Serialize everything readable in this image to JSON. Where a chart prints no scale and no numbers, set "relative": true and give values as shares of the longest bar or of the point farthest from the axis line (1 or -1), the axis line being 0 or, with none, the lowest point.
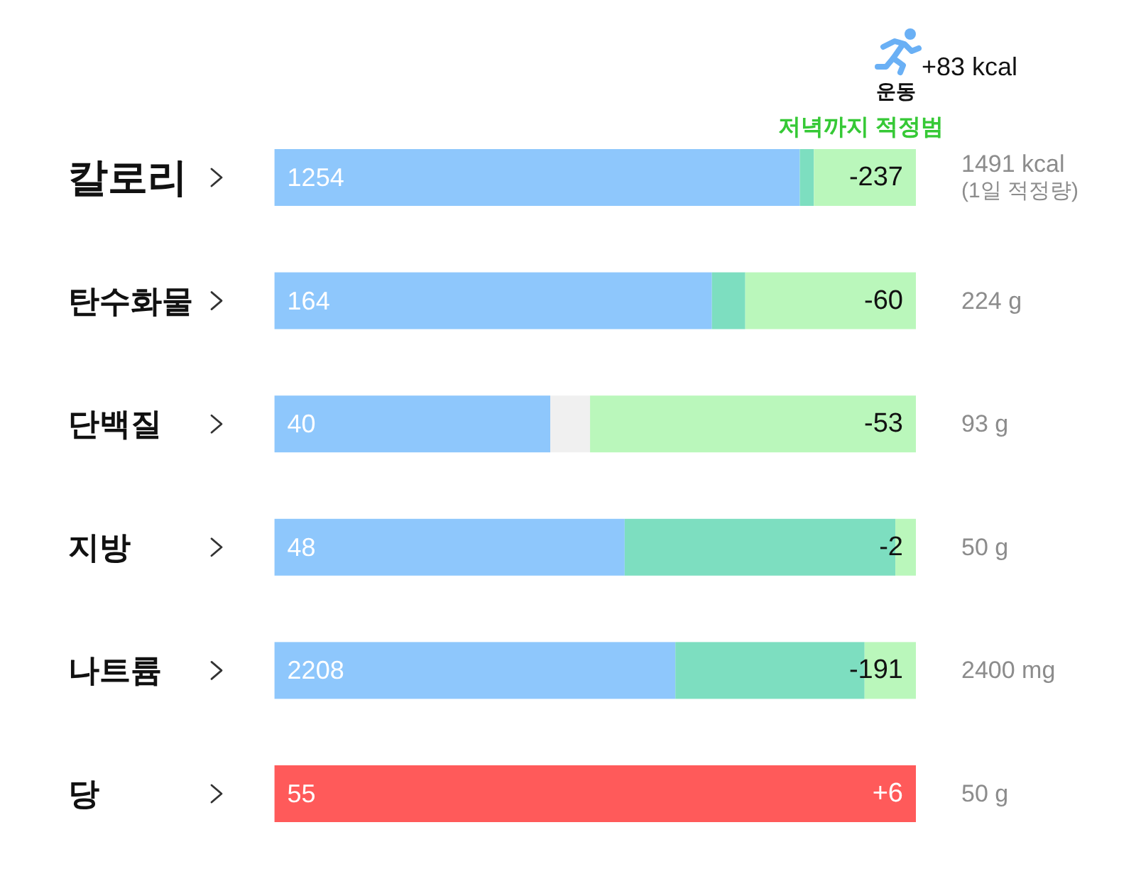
{
  "chart_data": {
    "type": "bar",
    "orientation": "horizontal",
    "stacked": true,
    "relative": true,
    "tick_labels": "y",
    "categories": [
      "칼로리",
      "탄수화물",
      "단백질",
      "지방",
      "나트륨",
      "당"
    ],
    "series": [
      {
        "colors": [
          "#8ec7fc",
          "#8ec7fc",
          "#8ec7fc",
          "#8ec7fc",
          "#8ec7fc",
          "#ff5a5a"
        ],
        "values": [
          0.819,
          0.682,
          0.43,
          0.546,
          0.625,
          1
        ]
      },
      {
        "colors": [
          "#7ddec0",
          "#7ddec0",
          "#f0f0f0",
          "#7ddec0",
          "#7ddec0",
          null
        ],
        "values": [
          0.022,
          0.052,
          0.062,
          0.422,
          0.295,
          null
        ]
      },
      {
        "color": "#baf7bb",
        "values": [
          0.159,
          0.266,
          0.508,
          0.032,
          0.08,
          null
        ]
      }
    ],
    "annotations": [
      "운동",
      "+83 kcal",
      "저녁까지 적정범",
      "1254",
      "-237",
      "1491 kcal\n(1일 적정량)",
      "164",
      "-60",
      "224 g",
      "40",
      "-53",
      "93 g",
      "48",
      "-2",
      "50 g",
      "2208",
      "-191",
      "2400 mg",
      "55",
      "+6",
      "50 g"
    ]
  }
}
